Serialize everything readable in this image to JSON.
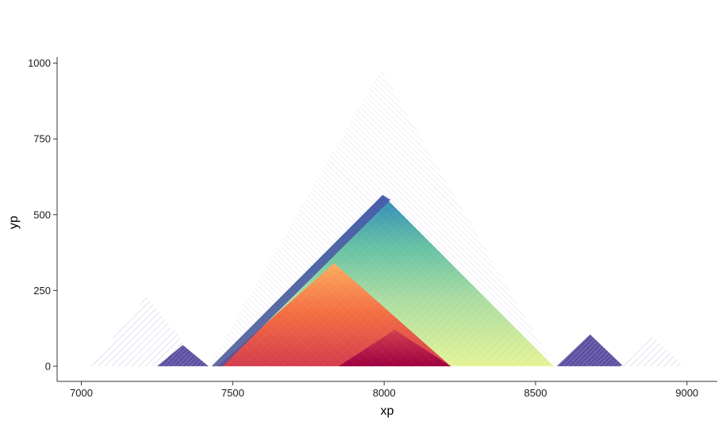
{
  "chart_data": {
    "type": "heatmap",
    "title": "",
    "xlabel": "xp",
    "ylabel": "yp",
    "xlim": [
      6920,
      9100
    ],
    "ylim": [
      -50,
      1020
    ],
    "x_ticks": [
      7000,
      7500,
      8000,
      8500,
      9000
    ],
    "y_ticks": [
      0,
      250,
      500,
      750,
      1000
    ],
    "x_tick_labels": [
      "7000",
      "7500",
      "8000",
      "8500",
      "9000"
    ],
    "y_tick_labels": [
      "0",
      "250",
      "500",
      "750",
      "1000"
    ],
    "grid": false,
    "legend": "none",
    "description_of_marks": "Triangular interaction heatmap (sparse outer signal, dense central domains)",
    "domains": [
      {
        "name": "left-sparse",
        "x_start": 7030,
        "x_end": 7400,
        "peak_y": 230,
        "kind": "sparse",
        "color": "#6a5aa8"
      },
      {
        "name": "left-block",
        "x_start": 7250,
        "x_end": 7420,
        "peak_y": 70,
        "kind": "dense",
        "color": "#5e4fa2"
      },
      {
        "name": "outer-sparse",
        "x_start": 7420,
        "x_end": 8560,
        "peak_y": 980,
        "kind": "sparse",
        "color": "#7d6fb8"
      },
      {
        "name": "big-domain",
        "x_start": 7430,
        "x_end": 8560,
        "peak_y": 565,
        "kind": "dense-gradient",
        "color": "#3288bd"
      },
      {
        "name": "sub-domain-left",
        "x_start": 7450,
        "x_end": 8220,
        "peak_y": 340,
        "kind": "dense",
        "color": "#f46d43"
      },
      {
        "name": "sub-domain-core",
        "x_start": 7850,
        "x_end": 8220,
        "peak_y": 120,
        "kind": "dense",
        "color": "#c2185b"
      },
      {
        "name": "right-block",
        "x_start": 8570,
        "x_end": 8790,
        "peak_y": 105,
        "kind": "dense",
        "color": "#5e4fa2"
      },
      {
        "name": "right-sparse",
        "x_start": 8780,
        "x_end": 8990,
        "peak_y": 100,
        "kind": "sparse",
        "color": "#6a5aa8"
      }
    ],
    "palette": [
      "#5e4fa2",
      "#3288bd",
      "#66c2a5",
      "#abdda4",
      "#e6f598",
      "#fee08b",
      "#fdae61",
      "#f46d43",
      "#d53e4f",
      "#9e0142"
    ]
  }
}
